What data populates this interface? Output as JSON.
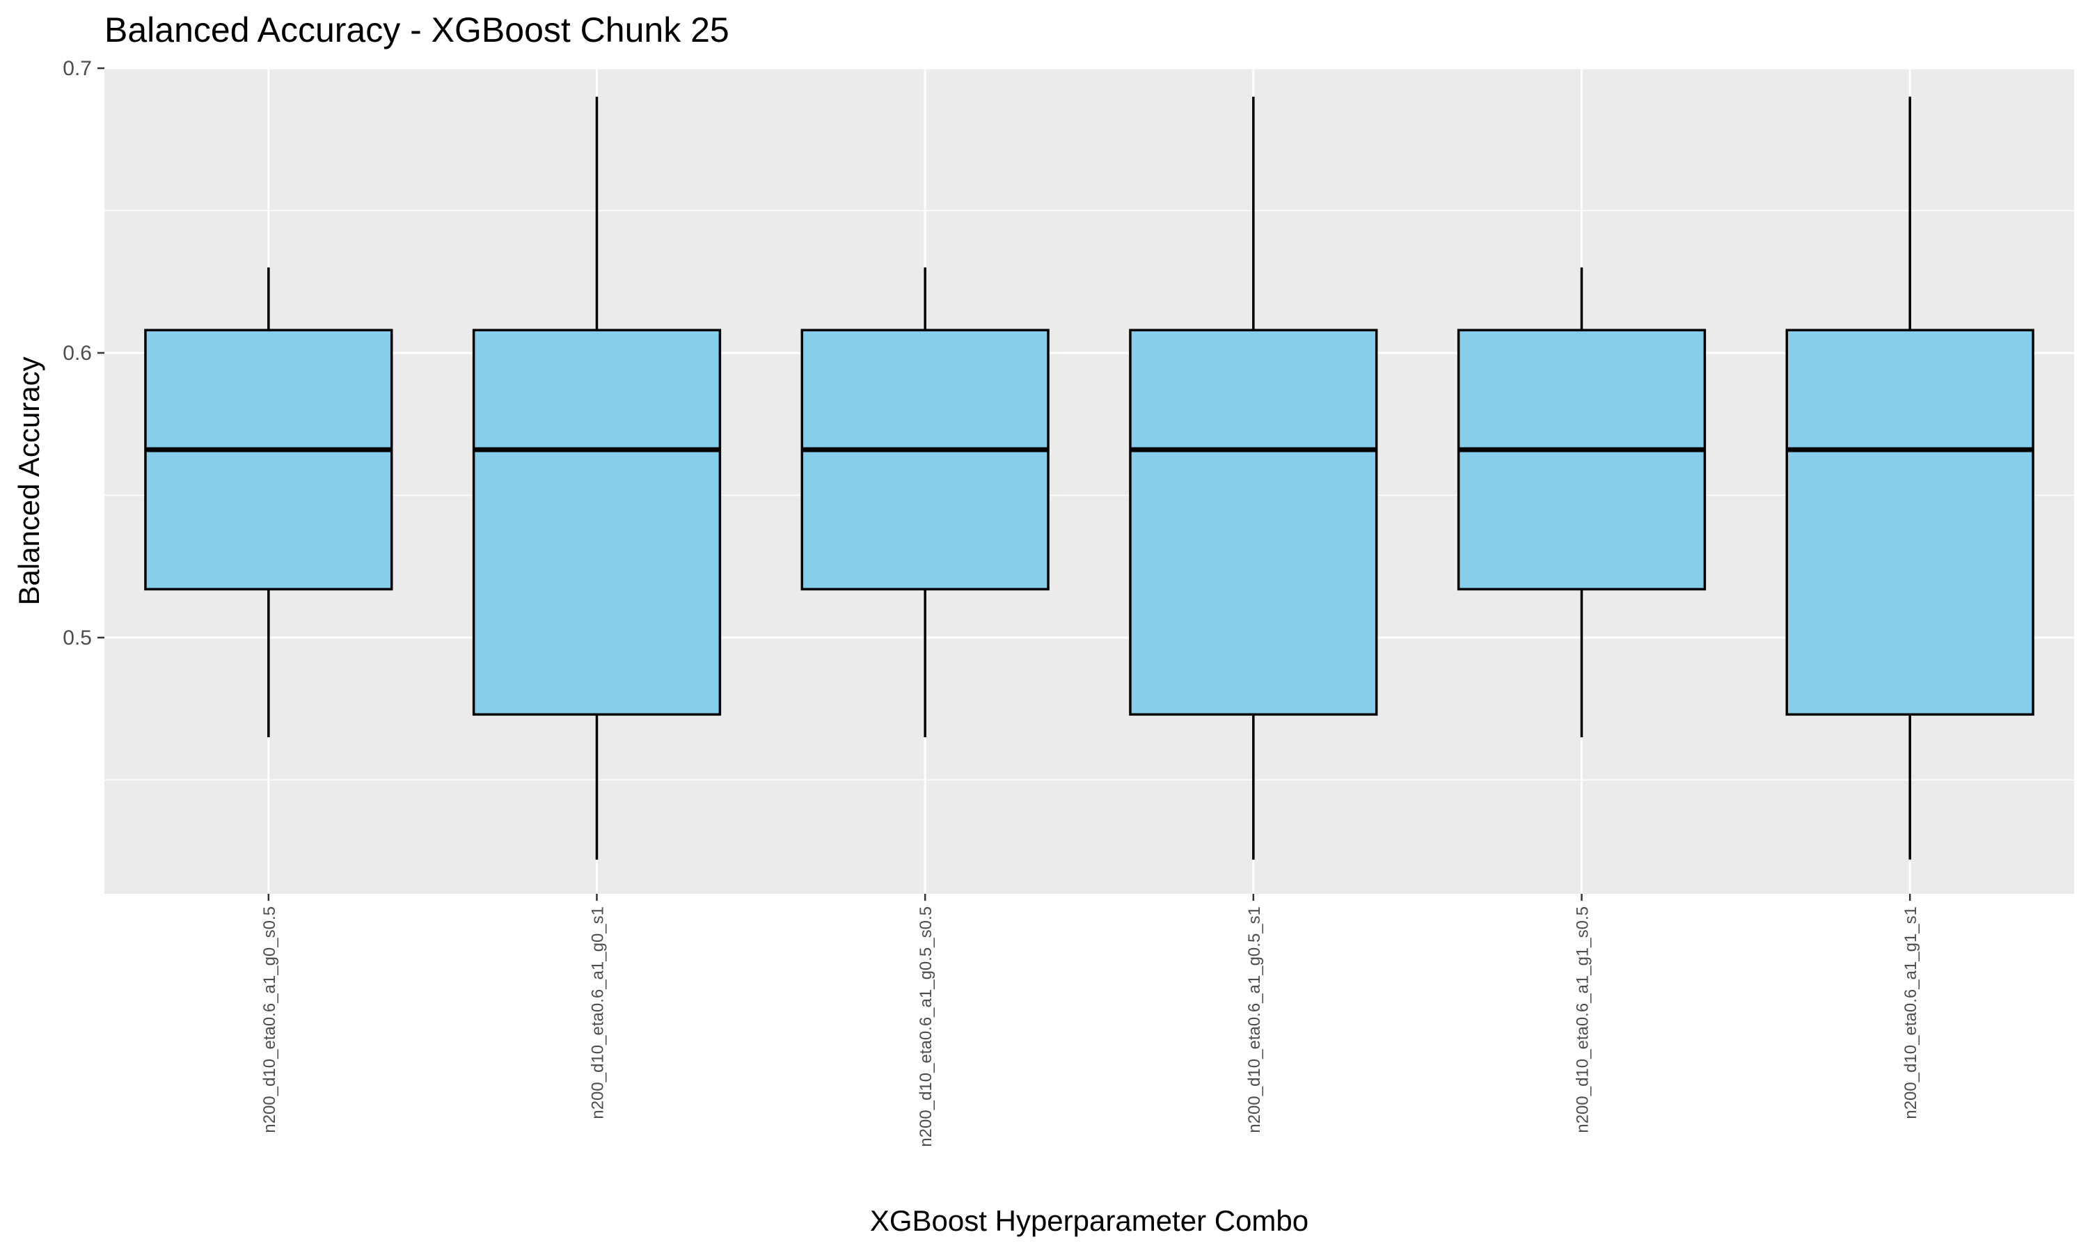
{
  "chart_data": {
    "type": "boxplot",
    "title": "Balanced Accuracy - XGBoost Chunk 25",
    "xlabel": "XGBoost Hyperparameter Combo",
    "ylabel": "Balanced Accuracy",
    "ylim": [
      0.41,
      0.7
    ],
    "yticks": [
      {
        "value": 0.5,
        "label": "0.5"
      },
      {
        "value": 0.6,
        "label": "0.6"
      },
      {
        "value": 0.7,
        "label": "0.7"
      }
    ],
    "grid": true,
    "box_fill": "#87CEEB",
    "panel_background": "#EBEBEB",
    "categories": [
      "n200_d10_eta0.6_a1_g0_s0.5",
      "n200_d10_eta0.6_a1_g0_s1",
      "n200_d10_eta0.6_a1_g0.5_s0.5",
      "n200_d10_eta0.6_a1_g0.5_s1",
      "n200_d10_eta0.6_a1_g1_s0.5",
      "n200_d10_eta0.6_a1_g1_s1"
    ],
    "boxes": [
      {
        "whisker_low": 0.465,
        "q1": 0.517,
        "median": 0.566,
        "q3": 0.608,
        "whisker_high": 0.63
      },
      {
        "whisker_low": 0.422,
        "q1": 0.473,
        "median": 0.566,
        "q3": 0.608,
        "whisker_high": 0.69
      },
      {
        "whisker_low": 0.465,
        "q1": 0.517,
        "median": 0.566,
        "q3": 0.608,
        "whisker_high": 0.63
      },
      {
        "whisker_low": 0.422,
        "q1": 0.473,
        "median": 0.566,
        "q3": 0.608,
        "whisker_high": 0.69
      },
      {
        "whisker_low": 0.465,
        "q1": 0.517,
        "median": 0.566,
        "q3": 0.608,
        "whisker_high": 0.63
      },
      {
        "whisker_low": 0.422,
        "q1": 0.473,
        "median": 0.566,
        "q3": 0.608,
        "whisker_high": 0.69
      }
    ]
  }
}
